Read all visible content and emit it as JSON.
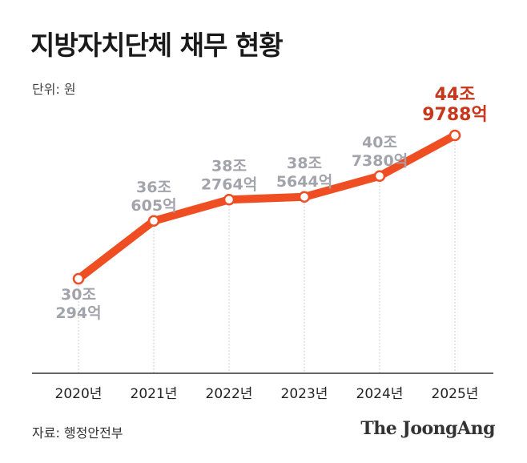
{
  "header": {
    "title": "지방자치단체 채무 현황",
    "unit": "단위: 원"
  },
  "footer": {
    "source": "자료: 행정안전부",
    "brand": "The JoongAng"
  },
  "colors": {
    "line": "#ef4e23",
    "label": "#a3a3ab",
    "highlight": "#c8361c",
    "axis": "#333333",
    "guide": "#cccccc"
  },
  "chart_data": {
    "type": "line",
    "title": "지방자치단체 채무 현황",
    "ylabel": "단위: 원",
    "categories": [
      "2020년",
      "2021년",
      "2022년",
      "2023년",
      "2024년",
      "2025년"
    ],
    "values": [
      30.0294,
      36.0605,
      38.2764,
      38.5644,
      40.738,
      44.9788
    ],
    "data_labels": [
      [
        "30조",
        "294억"
      ],
      [
        "36조",
        "605억"
      ],
      [
        "38조",
        "2764억"
      ],
      [
        "38조",
        "5644억"
      ],
      [
        "40조",
        "7380억"
      ],
      [
        "44조",
        "9788억"
      ]
    ],
    "highlight_index": 5,
    "grid": false
  }
}
